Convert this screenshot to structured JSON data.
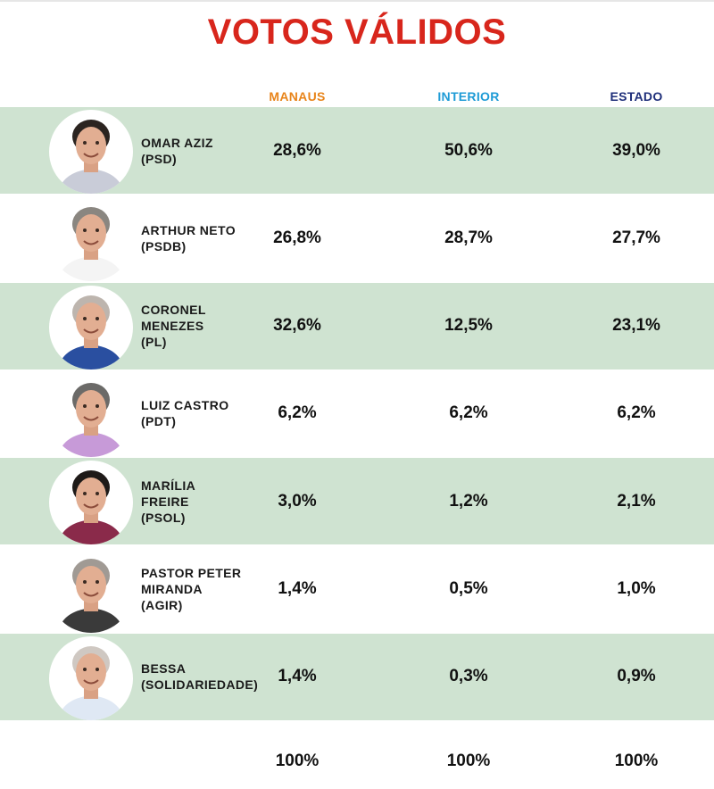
{
  "chart_data": {
    "type": "table",
    "title": "VOTOS VÁLIDOS",
    "columns": [
      {
        "label": "MANAUS",
        "color": "#e8841a"
      },
      {
        "label": "INTERIOR",
        "color": "#1e9bd6"
      },
      {
        "label": "ESTADO",
        "color": "#1f2f7a"
      }
    ],
    "rows": [
      {
        "name": "OMAR AZIZ\n(PSD)",
        "values": [
          "28,6%",
          "50,6%",
          "39,0%"
        ],
        "photo_icon": "candidate-photo-icon"
      },
      {
        "name": "ARTHUR NETO\n(PSDB)",
        "values": [
          "26,8%",
          "28,7%",
          "27,7%"
        ],
        "photo_icon": "candidate-photo-icon"
      },
      {
        "name": "CORONEL\nMENEZES\n(PL)",
        "values": [
          "32,6%",
          "12,5%",
          "23,1%"
        ],
        "photo_icon": "candidate-photo-icon"
      },
      {
        "name": "LUIZ CASTRO\n(PDT)",
        "values": [
          "6,2%",
          "6,2%",
          "6,2%"
        ],
        "photo_icon": "candidate-photo-icon"
      },
      {
        "name": "MARÍLIA\nFREIRE\n(PSOL)",
        "values": [
          "3,0%",
          "1,2%",
          "2,1%"
        ],
        "photo_icon": "candidate-photo-icon"
      },
      {
        "name": "PASTOR PETER\nMIRANDA\n(AGIR)",
        "values": [
          "1,4%",
          "0,5%",
          "1,0%"
        ],
        "photo_icon": "candidate-photo-icon"
      },
      {
        "name": "BESSA\n(SOLIDARIEDADE)",
        "values": [
          "1,4%",
          "0,3%",
          "0,9%"
        ],
        "photo_icon": "candidate-photo-icon"
      }
    ],
    "totals": [
      "100%",
      "100%",
      "100%"
    ],
    "colors": {
      "title": "#d8261c",
      "row_band": "#cfe3d1",
      "shirts": [
        "#c9ccd8",
        "#f4f4f4",
        "#2a4fa0",
        "#c79ad8",
        "#8a2a4a",
        "#3a3a3a",
        "#dfe8f4"
      ],
      "hair": [
        "#2b2420",
        "#8a8680",
        "#bdb5ae",
        "#6b6a68",
        "#1e1a18",
        "#a09a94",
        "#cfc8c2"
      ]
    }
  }
}
